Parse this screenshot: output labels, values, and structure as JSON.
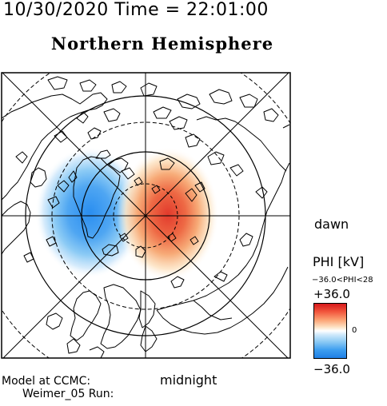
{
  "header": {
    "datetime": "10/30/2020 Time = 22:01:00",
    "title": "Northern Hemisphere"
  },
  "labels": {
    "dawn": "dawn",
    "midnight": "midnight",
    "model": "Model at CCMC:",
    "run": "Weimer_05 Run:"
  },
  "legend": {
    "title": "PHI [kV]",
    "range": "−36.0<PHI<28",
    "max": "+36.0",
    "zero": "0",
    "min": "−36.0"
  },
  "colors": {
    "positive_cell": "#e8282c",
    "negative_cell": "#2a8ef0",
    "outline": "#000000"
  }
}
